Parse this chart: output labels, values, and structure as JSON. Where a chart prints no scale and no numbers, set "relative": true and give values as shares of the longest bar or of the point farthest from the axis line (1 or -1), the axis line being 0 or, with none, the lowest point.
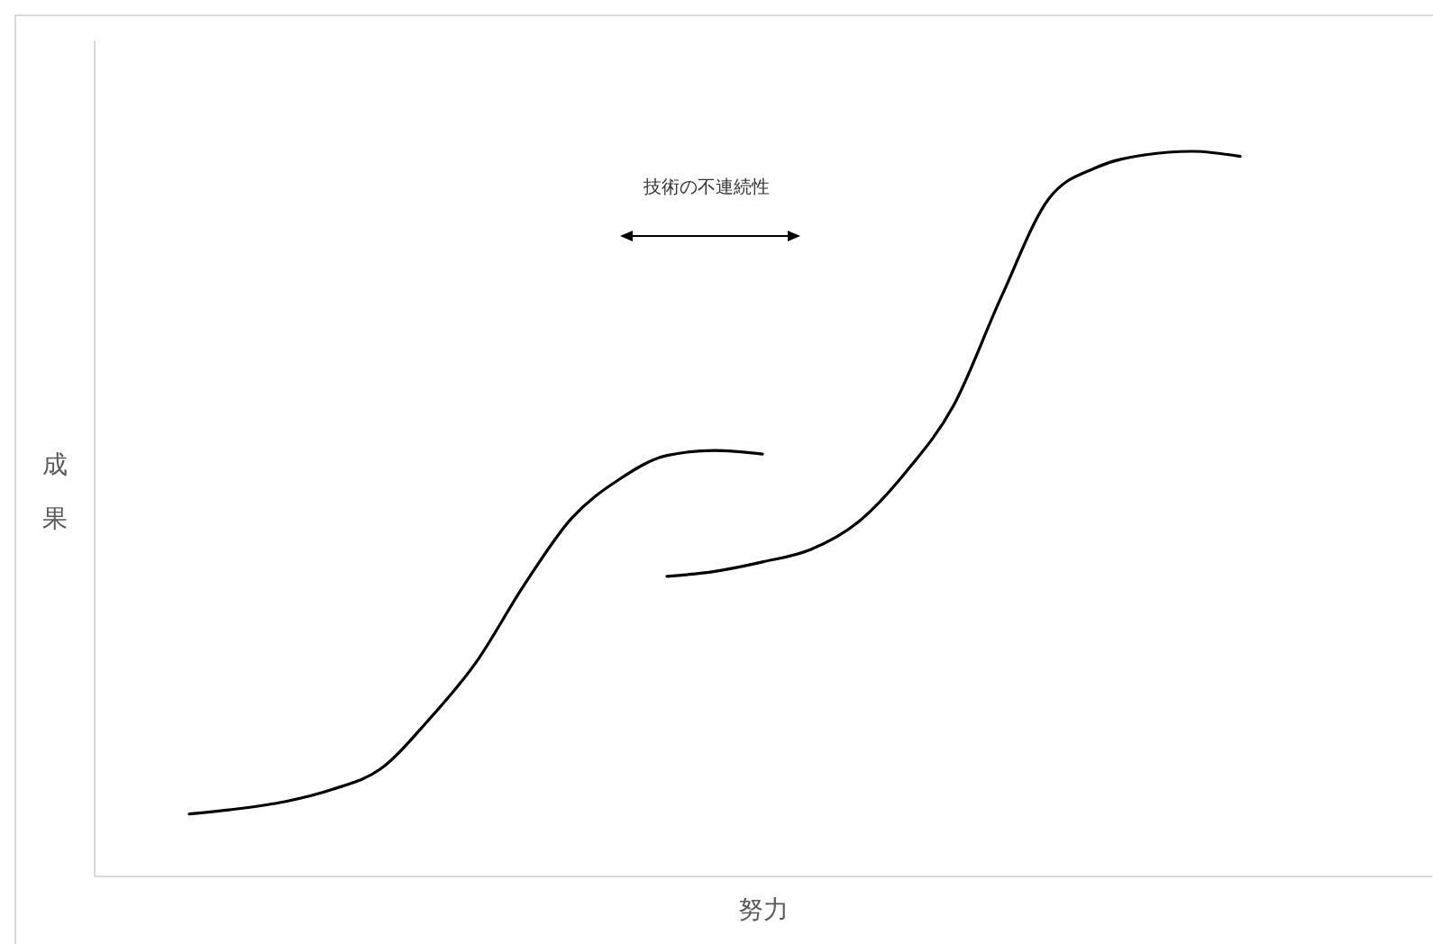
{
  "chart_data": {
    "type": "line",
    "relative": true,
    "xlabel": "努力",
    "ylabel": "成果",
    "annotations": [
      "技術の不連続性"
    ],
    "categories": [
      null,
      null,
      null,
      null,
      null,
      null,
      null,
      null,
      null,
      null,
      null,
      null,
      null,
      null,
      null,
      null,
      null,
      null,
      null,
      null,
      null,
      null,
      null,
      null,
      null,
      null,
      null,
      null,
      null
    ],
    "series": [
      {
        "color": "#000000",
        "values": [
          null,
          null,
          0.085,
          0.092,
          0.102,
          0.119,
          0.147,
          0.214,
          0.294,
          0.4,
          0.493,
          0.547,
          0.58,
          0.587,
          0.582,
          null,
          null,
          null,
          null,
          null,
          null,
          null,
          null,
          null,
          null,
          null,
          null,
          null,
          null
        ]
      },
      {
        "color": "#000000",
        "values": [
          null,
          null,
          null,
          null,
          null,
          null,
          null,
          null,
          null,
          null,
          null,
          null,
          0.413,
          0.42,
          0.433,
          0.45,
          0.488,
          0.557,
          0.649,
          0.799,
          0.935,
          0.978,
          0.995,
          1.0,
          0.993,
          null,
          null,
          null,
          null
        ]
      }
    ]
  }
}
